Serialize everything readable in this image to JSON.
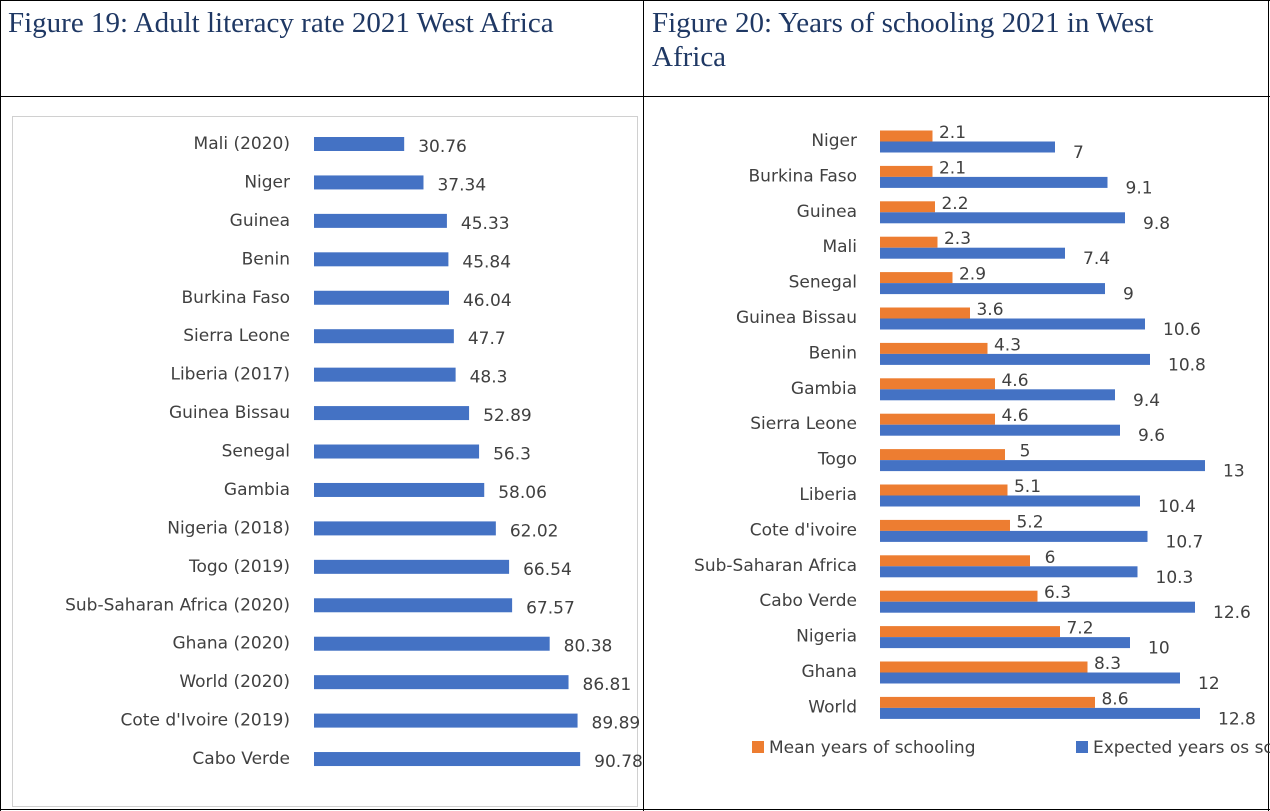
{
  "chart_data": [
    {
      "type": "bar",
      "title": "Figure 19: Adult literacy rate 2021 West Africa",
      "categories": [
        "Mali (2020)",
        "Niger",
        "Guinea",
        "Benin",
        "Burkina Faso",
        "Sierra Leone",
        "Liberia (2017)",
        "Guinea Bissau",
        "Senegal",
        "Gambia",
        "Nigeria (2018)",
        "Togo (2019)",
        "Sub-Saharan Africa (2020)",
        "Ghana (2020)",
        "World (2020)",
        "Cote d'Ivoire (2019)",
        "Cabo Verde"
      ],
      "values": [
        30.76,
        37.34,
        45.33,
        45.84,
        46.04,
        47.7,
        48.3,
        52.89,
        56.3,
        58.06,
        62.02,
        66.54,
        67.57,
        80.38,
        86.81,
        89.89,
        90.78
      ],
      "color": "#4472c4"
    },
    {
      "type": "bar",
      "title": "Figure 20: Years of schooling 2021 in West Africa",
      "categories": [
        "Niger",
        "Burkina Faso",
        "Guinea",
        "Mali",
        "Senegal",
        "Guinea Bissau",
        "Benin",
        "Gambia",
        "Sierra Leone",
        "Togo",
        "Liberia",
        "Cote d'ivoire",
        "Sub-Saharan Africa",
        "Cabo Verde",
        "Nigeria",
        "Ghana",
        "World"
      ],
      "series": [
        {
          "name": "Mean years of schooling",
          "color": "#ed7d31",
          "values": [
            2.1,
            2.1,
            2.2,
            2.3,
            2.9,
            3.6,
            4.3,
            4.6,
            4.6,
            5,
            5.1,
            5.2,
            6,
            6.3,
            7.2,
            8.3,
            8.6
          ]
        },
        {
          "name": "Expected years os schooling",
          "color": "#4472c4",
          "values": [
            7,
            9.1,
            9.8,
            7.4,
            9,
            10.6,
            10.8,
            9.4,
            9.6,
            13,
            10.4,
            10.7,
            10.3,
            12.6,
            10,
            12,
            12.8
          ]
        }
      ]
    }
  ]
}
